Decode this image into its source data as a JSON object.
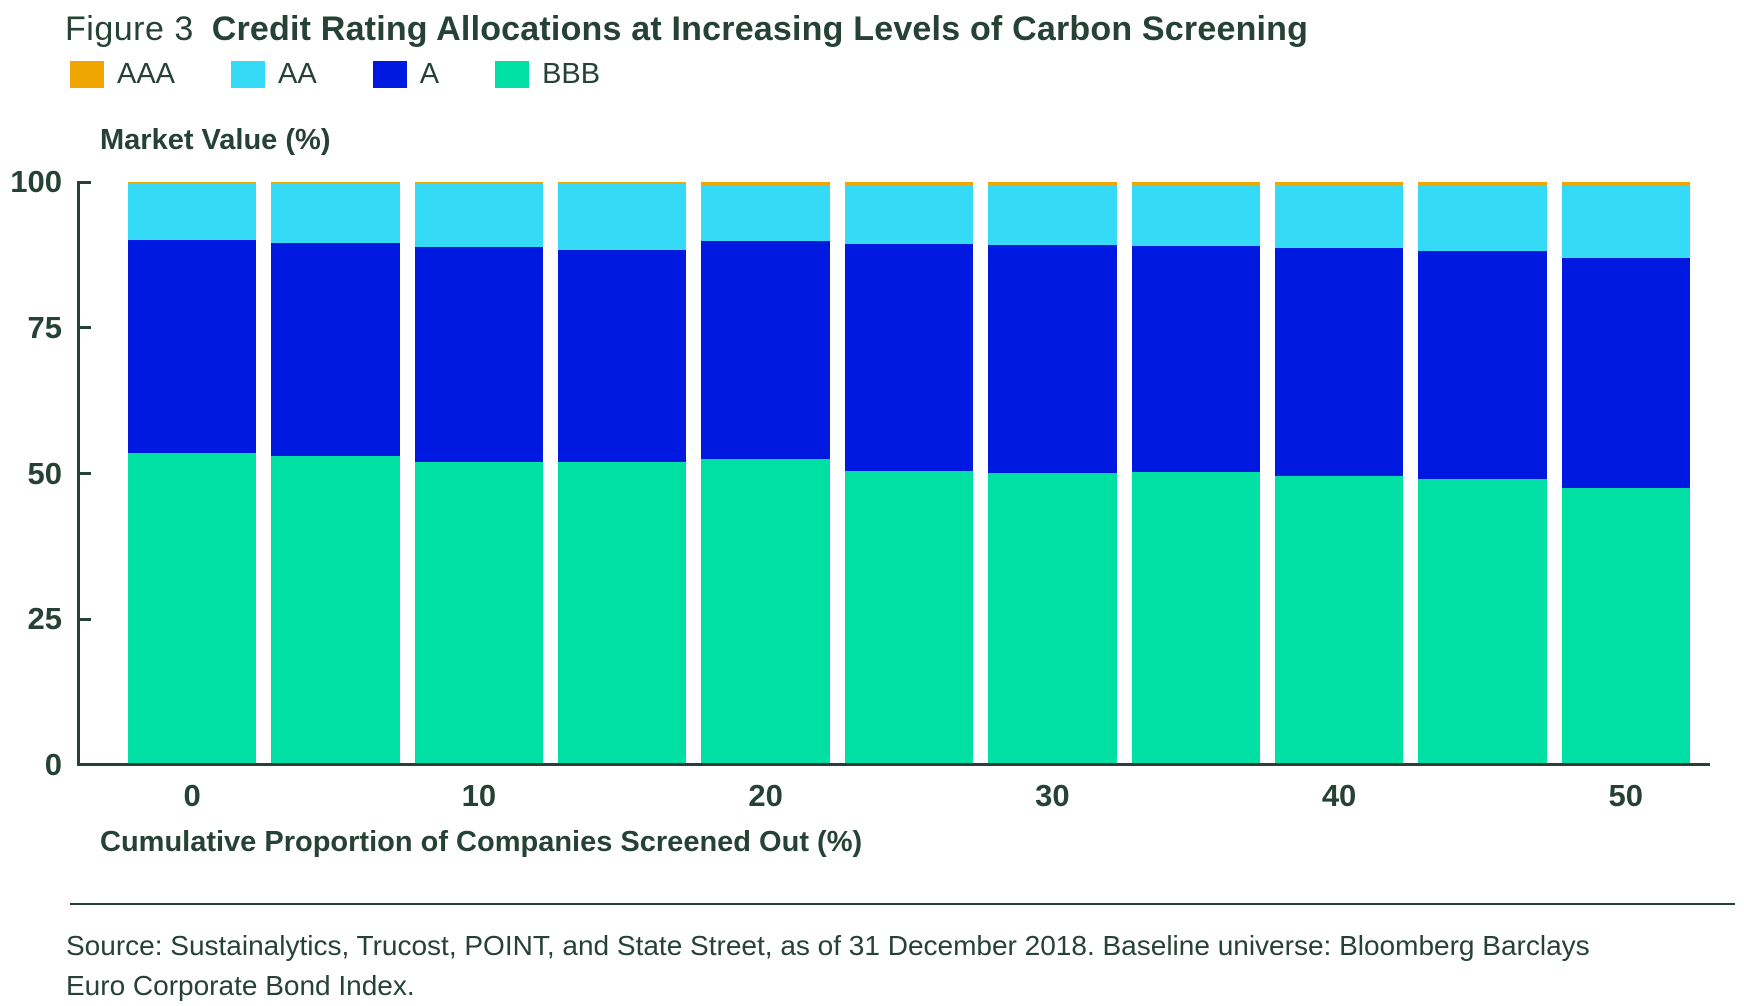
{
  "figure": {
    "label": "Figure 3",
    "title": "Credit Rating Allocations at Increasing Levels of Carbon Screening"
  },
  "legend": {
    "items": [
      {
        "label": "AAA",
        "color": "#F0A500"
      },
      {
        "label": "AA",
        "color": "#35DAF6"
      },
      {
        "label": "A",
        "color": "#0019E0"
      },
      {
        "label": "BBB",
        "color": "#00E0A5"
      }
    ]
  },
  "chart_data": {
    "type": "bar",
    "subtype": "stacked-100-percent",
    "title": "Credit Rating Allocations at Increasing Levels of Carbon Screening",
    "ylabel": "Market Value (%)",
    "xlabel": "Cumulative Proportion of Companies Screened Out (%)",
    "ylim": [
      0,
      100
    ],
    "y_ticks_top_to_bottom": [
      "100",
      "75",
      "50",
      "25",
      "0"
    ],
    "categories": [
      0,
      5,
      10,
      15,
      20,
      25,
      30,
      35,
      40,
      45,
      50
    ],
    "x_tick_labels": [
      "0",
      "",
      "10",
      "",
      "20",
      "",
      "30",
      "",
      "40",
      "",
      "50"
    ],
    "stack_order_top_to_bottom": [
      "AAA",
      "AA",
      "A",
      "BBB"
    ],
    "series": [
      {
        "name": "AAA",
        "color": "#F0A500",
        "values": [
          0.4,
          0.4,
          0.4,
          0.4,
          0.5,
          0.5,
          0.5,
          0.6,
          0.6,
          0.6,
          0.7
        ]
      },
      {
        "name": "AA",
        "color": "#35DAF6",
        "values": [
          9.6,
          10.0,
          10.7,
          11.2,
          9.7,
          10.2,
          10.3,
          10.4,
          10.7,
          11.2,
          12.3
        ]
      },
      {
        "name": "A",
        "color": "#0019E0",
        "values": [
          36.5,
          36.6,
          36.9,
          36.5,
          37.3,
          38.9,
          39.2,
          38.7,
          39.1,
          39.2,
          39.5
        ]
      },
      {
        "name": "BBB",
        "color": "#00E0A5",
        "values": [
          53.5,
          53.0,
          52.0,
          51.9,
          52.5,
          50.4,
          50.0,
          50.3,
          49.6,
          49.0,
          47.5
        ]
      }
    ],
    "legend_position": "top-left",
    "grid": false
  },
  "source": {
    "line1": "Source: Sustainalytics, Trucost, POINT, and State Street, as of 31 December 2018. Baseline universe: Bloomberg Barclays",
    "line2": "Euro Corporate Bond Index."
  },
  "colors": {
    "text": "#264236",
    "axis": "#264236",
    "background": "#ffffff"
  }
}
